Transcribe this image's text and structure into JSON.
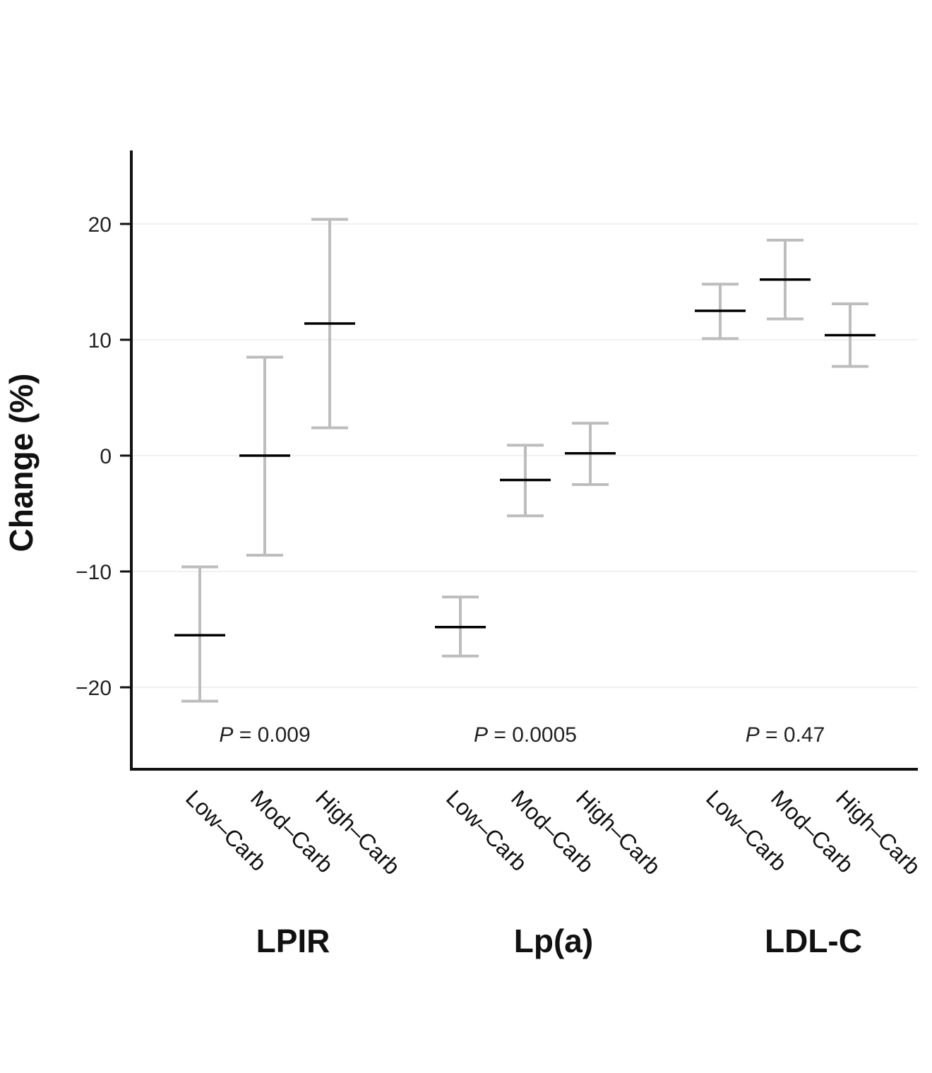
{
  "chart_data": {
    "type": "errorbar",
    "ylabel": "Change (%)",
    "ylim": [
      -27,
      26
    ],
    "yticks": [
      -20,
      -10,
      0,
      10,
      20
    ],
    "grid": true,
    "categories": [
      "Low–Carb",
      "Mod–Carb",
      "High–Carb"
    ],
    "groups": [
      {
        "name": "LPIR",
        "p_prefix": "P",
        "p_value": " = 0.009",
        "points": [
          {
            "category": "Low–Carb",
            "mean": -15.5,
            "lower": -21.2,
            "upper": -9.6
          },
          {
            "category": "Mod–Carb",
            "mean": 0.0,
            "lower": -8.6,
            "upper": 8.5
          },
          {
            "category": "High–Carb",
            "mean": 11.4,
            "lower": 2.4,
            "upper": 20.4
          }
        ]
      },
      {
        "name": "Lp(a)",
        "p_prefix": "P",
        "p_value": " = 0.0005",
        "points": [
          {
            "category": "Low–Carb",
            "mean": -14.8,
            "lower": -17.3,
            "upper": -12.2
          },
          {
            "category": "Mod–Carb",
            "mean": -2.1,
            "lower": -5.2,
            "upper": 0.9
          },
          {
            "category": "High–Carb",
            "mean": 0.2,
            "lower": -2.5,
            "upper": 2.8
          }
        ]
      },
      {
        "name": "LDL-C",
        "p_prefix": "P",
        "p_value": " = 0.47",
        "points": [
          {
            "category": "Low–Carb",
            "mean": 12.5,
            "lower": 10.1,
            "upper": 14.8
          },
          {
            "category": "Mod–Carb",
            "mean": 15.2,
            "lower": 11.8,
            "upper": 18.6
          },
          {
            "category": "High–Carb",
            "mean": 10.4,
            "lower": 7.7,
            "upper": 13.1
          }
        ]
      }
    ],
    "colors": {
      "whisker": "#bdbdbd",
      "mean": "#000000",
      "grid": "#ececec",
      "axis": "#111111"
    }
  }
}
